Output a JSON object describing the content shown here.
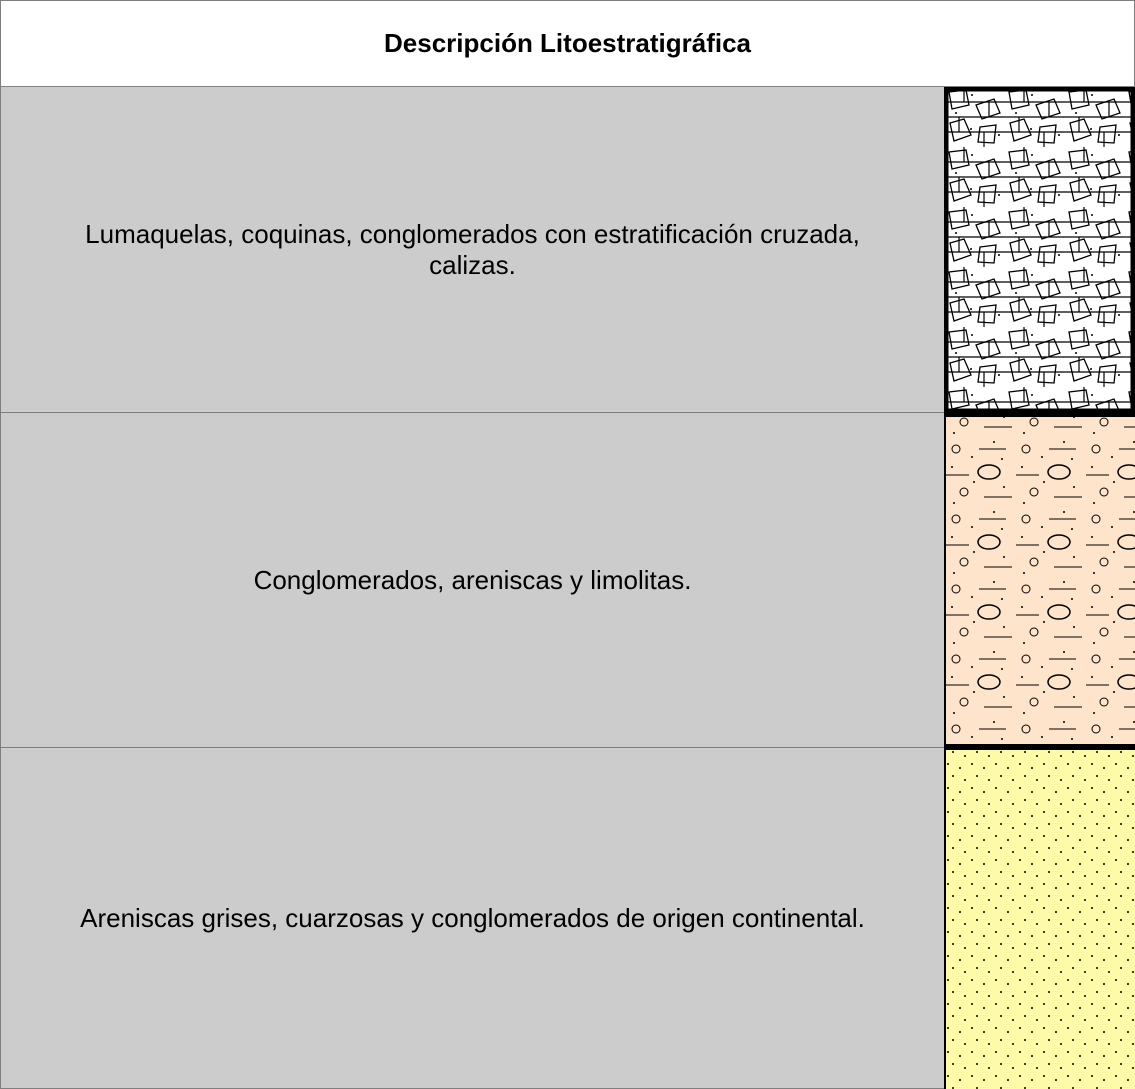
{
  "header": {
    "title": "Descripción Litoestratigráfica"
  },
  "table": {
    "rows": [
      [
        "Lumaquelas, coquinas, conglomerados con estratificación cruzada, calizas."
      ],
      [
        "Conglomerados, areniscas y limolitas."
      ],
      [
        "Areniscas grises, cuarzosas y conglomerados de origen continental."
      ]
    ]
  }
}
